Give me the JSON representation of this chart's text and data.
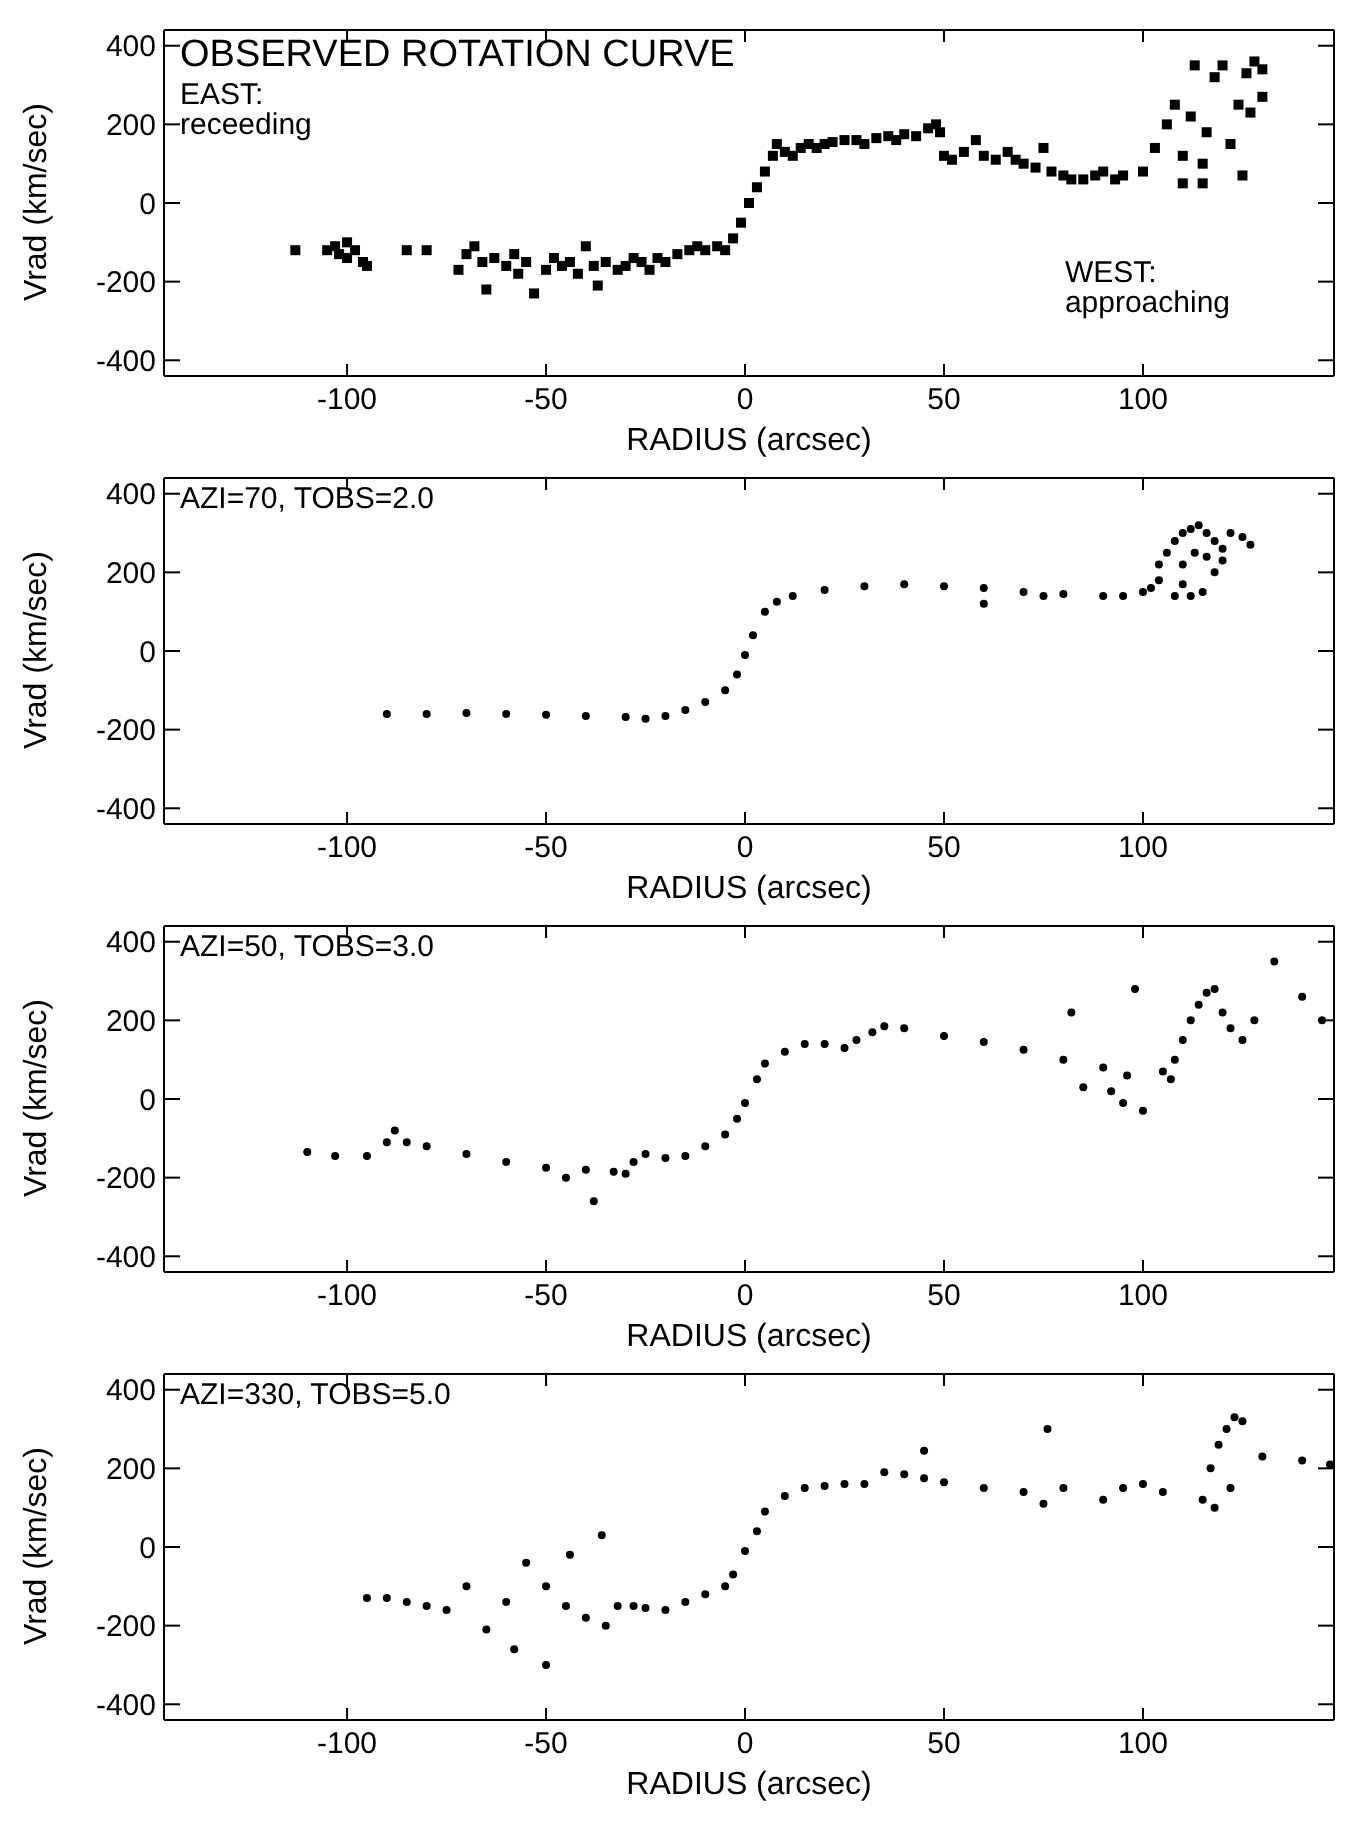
{
  "chart_data": [
    {
      "type": "scatter",
      "title": "OBSERVED ROTATION CURVE",
      "xlabel": "RADIUS (arcsec)",
      "ylabel": "Vrad (km/sec)",
      "marker": "square",
      "annotations": [
        "EAST:\nreceeding",
        "WEST:\napproaching"
      ],
      "xlim": [
        -146,
        148
      ],
      "xticks": [
        -100,
        -50,
        0,
        50,
        100
      ],
      "ylim": [
        -440,
        440
      ],
      "yticks": [
        -400,
        -200,
        0,
        200,
        400
      ],
      "series": [
        {
          "color": "#000000",
          "x": [
            -113,
            -105,
            -102,
            -100,
            -98,
            -96,
            -103,
            -100,
            -95,
            -85,
            -80,
            -72,
            -70,
            -68,
            -66,
            -65,
            -63,
            -60,
            -58,
            -57,
            -55,
            -53,
            -50,
            -48,
            -46,
            -44,
            -42,
            -40,
            -38,
            -37,
            -35,
            -32,
            -30,
            -28,
            -26,
            -24,
            -22,
            -20,
            -17,
            -14,
            -12,
            -10,
            -7,
            -5,
            -3,
            -1,
            1,
            3,
            5,
            7,
            8,
            10,
            12,
            14,
            16,
            18,
            20,
            22,
            25,
            28,
            30,
            33,
            36,
            38,
            40,
            43,
            46,
            48,
            49,
            50,
            52,
            55,
            58,
            60,
            63,
            66,
            68,
            70,
            73,
            75,
            77,
            80,
            82,
            85,
            88,
            90,
            93,
            95,
            100,
            103,
            106,
            108,
            110,
            112,
            113,
            115,
            116,
            118,
            120,
            122,
            124,
            126,
            128,
            130,
            130,
            110,
            115,
            125,
            127
          ],
          "values": [
            -120,
            -120,
            -130,
            -140,
            -120,
            -150,
            -110,
            -100,
            -160,
            -120,
            -120,
            -170,
            -130,
            -110,
            -150,
            -220,
            -140,
            -160,
            -130,
            -180,
            -150,
            -230,
            -170,
            -140,
            -160,
            -150,
            -180,
            -110,
            -160,
            -210,
            -150,
            -170,
            -160,
            -140,
            -150,
            -170,
            -140,
            -150,
            -130,
            -120,
            -110,
            -120,
            -110,
            -120,
            -90,
            -50,
            0,
            40,
            80,
            120,
            150,
            130,
            120,
            140,
            150,
            140,
            150,
            155,
            160,
            160,
            150,
            165,
            170,
            160,
            175,
            170,
            190,
            200,
            180,
            120,
            110,
            130,
            160,
            120,
            110,
            130,
            110,
            100,
            90,
            140,
            80,
            70,
            60,
            60,
            70,
            80,
            60,
            70,
            80,
            140,
            200,
            250,
            120,
            220,
            350,
            100,
            180,
            320,
            350,
            150,
            250,
            330,
            360,
            340,
            270,
            50,
            50,
            70,
            230
          ]
        }
      ]
    },
    {
      "type": "scatter",
      "title": "AZI=70, TOBS=2.0",
      "xlabel": "RADIUS (arcsec)",
      "ylabel": "Vrad (km/sec)",
      "marker": "circle",
      "xlim": [
        -146,
        148
      ],
      "xticks": [
        -100,
        -50,
        0,
        50,
        100
      ],
      "ylim": [
        -440,
        440
      ],
      "yticks": [
        -400,
        -200,
        0,
        200,
        400
      ],
      "series": [
        {
          "color": "#000000",
          "x": [
            -90,
            -80,
            -70,
            -60,
            -50,
            -40,
            -30,
            -25,
            -20,
            -15,
            -10,
            -5,
            -2,
            0,
            2,
            5,
            8,
            12,
            20,
            30,
            40,
            50,
            60,
            70,
            75,
            80,
            90,
            95,
            60,
            100,
            102,
            104,
            106,
            108,
            110,
            112,
            114,
            116,
            118,
            120,
            122,
            125,
            127,
            110,
            112,
            108,
            115,
            118,
            104,
            120,
            113,
            116,
            110
          ],
          "values": [
            -160,
            -160,
            -158,
            -160,
            -162,
            -165,
            -168,
            -172,
            -165,
            -150,
            -130,
            -100,
            -60,
            -10,
            40,
            100,
            125,
            140,
            155,
            165,
            170,
            165,
            160,
            150,
            140,
            145,
            140,
            140,
            120,
            150,
            160,
            220,
            250,
            280,
            300,
            310,
            320,
            300,
            280,
            260,
            300,
            290,
            270,
            170,
            140,
            140,
            150,
            200,
            180,
            230,
            250,
            240,
            220
          ]
        }
      ]
    },
    {
      "type": "scatter",
      "title": "AZI=50, TOBS=3.0",
      "xlabel": "RADIUS (arcsec)",
      "ylabel": "Vrad (km/sec)",
      "marker": "circle",
      "xlim": [
        -146,
        148
      ],
      "xticks": [
        -100,
        -50,
        0,
        50,
        100
      ],
      "ylim": [
        -440,
        440
      ],
      "yticks": [
        -400,
        -200,
        0,
        200,
        400
      ],
      "series": [
        {
          "color": "#000000",
          "x": [
            -110,
            -103,
            -95,
            -90,
            -88,
            -85,
            -80,
            -70,
            -60,
            -50,
            -45,
            -40,
            -38,
            -33,
            -30,
            -28,
            -25,
            -20,
            -15,
            -10,
            -5,
            -2,
            0,
            3,
            5,
            10,
            15,
            20,
            25,
            28,
            32,
            35,
            40,
            50,
            60,
            70,
            80,
            90,
            96,
            85,
            92,
            100,
            95,
            82,
            98,
            105,
            107,
            108,
            110,
            112,
            114,
            116,
            118,
            120,
            122,
            125,
            128,
            140,
            145,
            133
          ],
          "values": [
            -135,
            -145,
            -145,
            -110,
            -80,
            -110,
            -120,
            -140,
            -160,
            -175,
            -200,
            -180,
            -260,
            -185,
            -190,
            -160,
            -140,
            -150,
            -145,
            -120,
            -90,
            -50,
            -10,
            50,
            90,
            120,
            140,
            140,
            130,
            150,
            170,
            185,
            180,
            160,
            145,
            125,
            100,
            80,
            60,
            30,
            20,
            -30,
            -10,
            220,
            280,
            70,
            50,
            100,
            150,
            200,
            240,
            270,
            280,
            220,
            180,
            150,
            200,
            260,
            200,
            350
          ]
        }
      ]
    },
    {
      "type": "scatter",
      "title": "AZI=330, TOBS=5.0",
      "xlabel": "RADIUS (arcsec)",
      "ylabel": "Vrad (km/sec)",
      "marker": "circle",
      "xlim": [
        -146,
        148
      ],
      "xticks": [
        -100,
        -50,
        0,
        50,
        100
      ],
      "ylim": [
        -440,
        440
      ],
      "yticks": [
        -400,
        -200,
        0,
        200,
        400
      ],
      "series": [
        {
          "color": "#000000",
          "x": [
            -95,
            -90,
            -85,
            -80,
            -75,
            -70,
            -65,
            -60,
            -58,
            -55,
            -50,
            -50,
            -45,
            -44,
            -40,
            -36,
            -35,
            -32,
            -28,
            -25,
            -20,
            -15,
            -10,
            -5,
            -3,
            0,
            3,
            5,
            10,
            15,
            20,
            25,
            30,
            35,
            40,
            45,
            50,
            60,
            70,
            75,
            80,
            90,
            95,
            100,
            105,
            76,
            45,
            115,
            117,
            119,
            121,
            123,
            125,
            122,
            118,
            130,
            140,
            147
          ],
          "values": [
            -130,
            -130,
            -140,
            -150,
            -160,
            -100,
            -210,
            -140,
            -260,
            -40,
            -300,
            -100,
            -150,
            -20,
            -180,
            30,
            -200,
            -150,
            -150,
            -155,
            -160,
            -140,
            -120,
            -100,
            -70,
            -10,
            40,
            90,
            130,
            150,
            155,
            160,
            160,
            190,
            185,
            175,
            165,
            150,
            140,
            110,
            150,
            120,
            150,
            160,
            140,
            300,
            245,
            120,
            200,
            260,
            300,
            330,
            320,
            150,
            100,
            230,
            220,
            210
          ]
        }
      ]
    }
  ]
}
